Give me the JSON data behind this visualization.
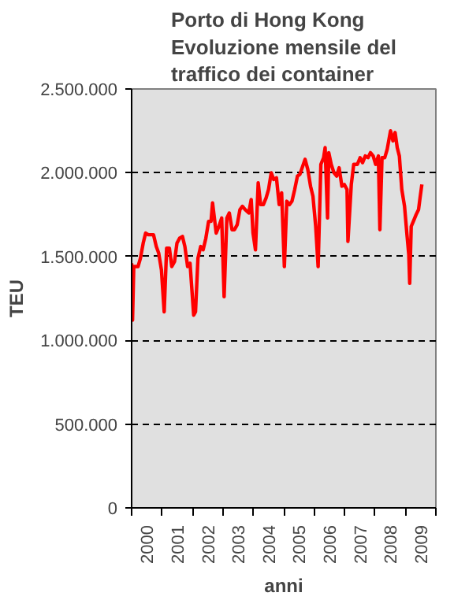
{
  "chart_data": {
    "type": "line",
    "title": "Porto di Hong Kong\nEvoluzione mensile del\ntraffico dei container",
    "xlabel": "anni",
    "ylabel": "TEU",
    "xlim": [
      2000,
      2010
    ],
    "ylim": [
      0,
      2500000
    ],
    "xticks": [
      {
        "value": 2000,
        "label": null
      },
      {
        "value": 2001,
        "label": null
      },
      {
        "value": 2002,
        "label": null
      },
      {
        "value": 2003,
        "label": null
      },
      {
        "value": 2004,
        "label": null
      },
      {
        "value": 2005,
        "label": null
      },
      {
        "value": 2006,
        "label": null
      },
      {
        "value": 2007,
        "label": null
      },
      {
        "value": 2008,
        "label": null
      },
      {
        "value": 2009,
        "label": null
      },
      {
        "value": 2010,
        "label": null
      },
      {
        "value": 2000.5,
        "label": "2000"
      },
      {
        "value": 2001.5,
        "label": "2001"
      },
      {
        "value": 2002.5,
        "label": "2002"
      },
      {
        "value": 2003.5,
        "label": "2003"
      },
      {
        "value": 2004.5,
        "label": "2004"
      },
      {
        "value": 2005.5,
        "label": "2005"
      },
      {
        "value": 2006.5,
        "label": "2006"
      },
      {
        "value": 2007.5,
        "label": "2007"
      },
      {
        "value": 2008.5,
        "label": "2008"
      },
      {
        "value": 2009.5,
        "label": "2009"
      }
    ],
    "yticks": [
      {
        "value": 0,
        "label": "0"
      },
      {
        "value": 500000,
        "label": "500.000"
      },
      {
        "value": 1000000,
        "label": "1.000.000"
      },
      {
        "value": 1500000,
        "label": "1.500.000"
      },
      {
        "value": 2000000,
        "label": "2.000.000"
      },
      {
        "value": 2500000,
        "label": "2.500.000"
      }
    ],
    "grid": "y",
    "marker": "none",
    "line_style": "solid",
    "series": [
      {
        "color": "#ff0000",
        "x": [
          2000.0,
          2000.03,
          2000.07,
          2000.21,
          2000.29,
          2000.38,
          2000.46,
          2000.55,
          2000.72,
          2000.81,
          2000.89,
          2000.98,
          2001.07,
          2001.15,
          2001.24,
          2001.32,
          2001.41,
          2001.49,
          2001.58,
          2001.67,
          2001.75,
          2001.84,
          2001.92,
          2002.04,
          2002.1,
          2002.18,
          2002.27,
          2002.35,
          2002.44,
          2002.53,
          2002.61,
          2002.66,
          2002.78,
          2002.87,
          2002.96,
          2003.04,
          2003.13,
          2003.21,
          2003.3,
          2003.38,
          2003.47,
          2003.56,
          2003.64,
          2003.73,
          2003.85,
          2003.93,
          2003.99,
          2004.07,
          2004.16,
          2004.24,
          2004.33,
          2004.42,
          2004.5,
          2004.59,
          2004.67,
          2004.76,
          2004.85,
          2004.93,
          2005.02,
          2005.1,
          2005.19,
          2005.27,
          2005.36,
          2005.45,
          2005.53,
          2005.7,
          2005.79,
          2005.88,
          2005.96,
          2006.05,
          2006.13,
          2006.22,
          2006.31,
          2006.36,
          2006.44,
          2006.48,
          2006.56,
          2006.65,
          2006.74,
          2006.82,
          2006.91,
          2006.99,
          2007.08,
          2007.11,
          2007.22,
          2007.3,
          2007.42,
          2007.51,
          2007.59,
          2007.68,
          2007.77,
          2007.85,
          2007.94,
          2008.02,
          2008.11,
          2008.16,
          2008.23,
          2008.32,
          2008.4,
          2008.51,
          2008.59,
          2008.66,
          2008.73,
          2008.8,
          2008.88,
          2008.97,
          2009.05,
          2009.11,
          2009.14,
          2009.19,
          2009.26,
          2009.35,
          2009.43,
          2009.48,
          2009.54
        ],
        "values": [
          1460000,
          1120000,
          1440000,
          1440000,
          1490000,
          1580000,
          1640000,
          1630000,
          1630000,
          1560000,
          1520000,
          1420000,
          1170000,
          1550000,
          1550000,
          1440000,
          1470000,
          1580000,
          1610000,
          1620000,
          1560000,
          1440000,
          1460000,
          1150000,
          1170000,
          1490000,
          1560000,
          1540000,
          1610000,
          1710000,
          1710000,
          1820000,
          1640000,
          1680000,
          1730000,
          1260000,
          1730000,
          1760000,
          1660000,
          1660000,
          1690000,
          1780000,
          1800000,
          1780000,
          1760000,
          1840000,
          1640000,
          1540000,
          1940000,
          1810000,
          1810000,
          1850000,
          1900000,
          2000000,
          1960000,
          1970000,
          1810000,
          1880000,
          1440000,
          1830000,
          1810000,
          1830000,
          1900000,
          1980000,
          1990000,
          2080000,
          2020000,
          1920000,
          1860000,
          1680000,
          1440000,
          2050000,
          2090000,
          2150000,
          1730000,
          2120000,
          2050000,
          2000000,
          1980000,
          2030000,
          1920000,
          1930000,
          1900000,
          1590000,
          1930000,
          2050000,
          2050000,
          2090000,
          2060000,
          2100000,
          2090000,
          2120000,
          2100000,
          2050000,
          2100000,
          1660000,
          2090000,
          2090000,
          2140000,
          2250000,
          2190000,
          2240000,
          2150000,
          2100000,
          1900000,
          1800000,
          1630000,
          1510000,
          1340000,
          1680000,
          1710000,
          1750000,
          1780000,
          1850000,
          1930000
        ]
      }
    ]
  }
}
